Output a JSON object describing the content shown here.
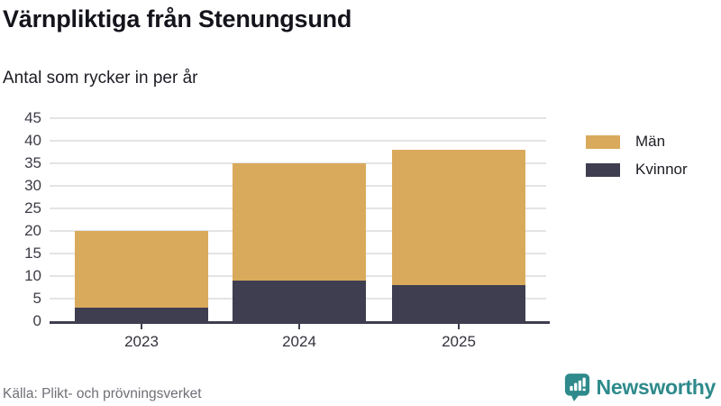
{
  "header": {
    "title": "Värnpliktiga från Stenungsund",
    "subtitle": "Antal som rycker in per år"
  },
  "footer": {
    "source": "Källa: Plikt- och prövningsverket",
    "brand_name": "Newsworthy",
    "brand_color": "#2e8a8b"
  },
  "chart_data": {
    "type": "bar",
    "stacked": true,
    "categories": [
      "2023",
      "2024",
      "2025"
    ],
    "series": [
      {
        "name": "Män",
        "color": "#d9aa5c",
        "values": [
          17,
          26,
          30
        ]
      },
      {
        "name": "Kvinnor",
        "color": "#3e3e50",
        "values": [
          3,
          9,
          8
        ]
      }
    ],
    "stack_order_bottom_to_top": [
      "Kvinnor",
      "Män"
    ],
    "totals": [
      20,
      35,
      38
    ],
    "title": "Värnpliktiga från Stenungsund",
    "xlabel": "",
    "ylabel": "",
    "ylim": [
      0,
      45
    ],
    "yticks": [
      0,
      5,
      10,
      15,
      20,
      25,
      30,
      35,
      40,
      45
    ],
    "grid": true,
    "gridline_color": "#e4e4e4",
    "axis_color": "#3e3e50",
    "legend_position": "right",
    "legend": [
      "Män",
      "Kvinnor"
    ]
  }
}
